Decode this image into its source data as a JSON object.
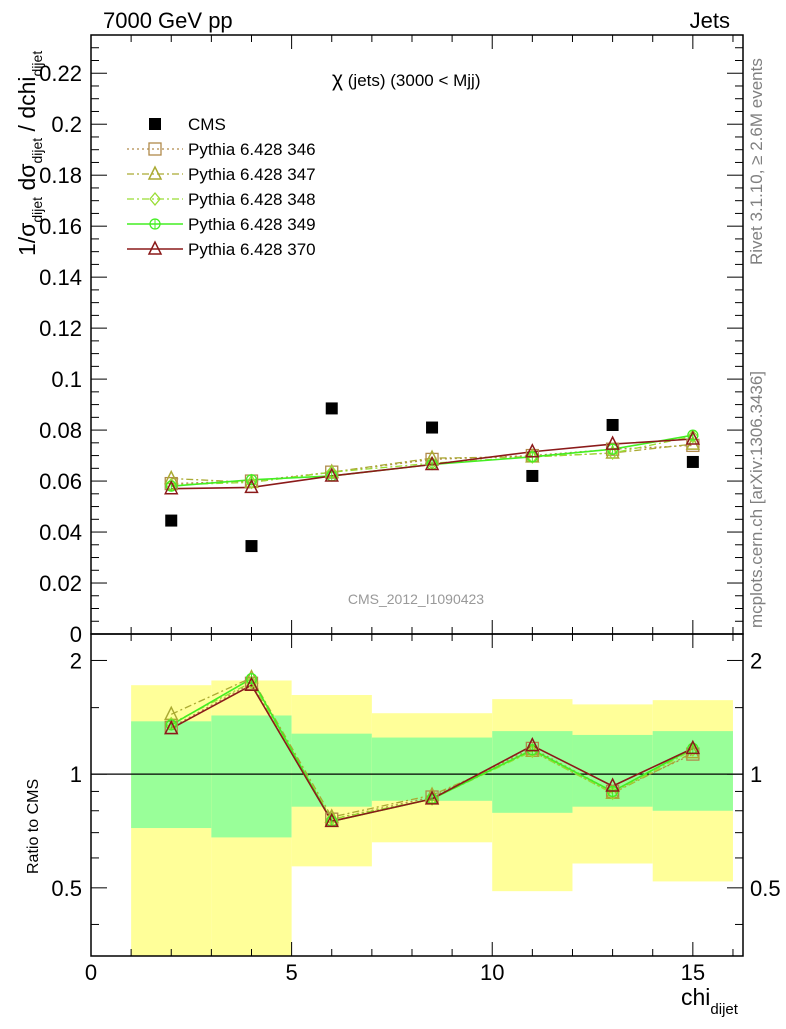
{
  "header": {
    "left": "7000 GeV pp",
    "right": "Jets"
  },
  "plot_title": {
    "chi": "χ",
    "rest": " (jets) (3000 < Mjj)"
  },
  "watermark": "CMS_2012_I1090423",
  "side_notes": {
    "rivet": "Rivet 3.1.10, ≥ 2.6M events",
    "mcplots": "mcplots.cern.ch [arXiv:1306.3436]"
  },
  "axis_labels": {
    "y_main_parts": [
      "1/σ",
      "dijet",
      " dσ",
      "dijet",
      " / dchi",
      "dijet"
    ],
    "y_ratio": "Ratio to CMS",
    "x_main": "chi",
    "x_sub": "dijet"
  },
  "colors": {
    "band_yellow": "#ffff99",
    "band_green": "#99ff99",
    "cms": "#000000",
    "p346": "#b08a4a",
    "p347": "#aaaa33",
    "p348": "#99dd33",
    "p349": "#44ee22",
    "p370": "#8b1a1a"
  },
  "chart_data": {
    "type": "scatter",
    "main": {
      "xlim": [
        0,
        16.25
      ],
      "ylim": [
        0,
        0.235
      ],
      "yticks": [
        {
          "v": 0,
          "label": "0"
        },
        {
          "v": 0.02,
          "label": "0.02"
        },
        {
          "v": 0.04,
          "label": "0.04"
        },
        {
          "v": 0.06,
          "label": "0.06"
        },
        {
          "v": 0.08,
          "label": "0.08"
        },
        {
          "v": 0.1,
          "label": "0.1"
        },
        {
          "v": 0.12,
          "label": "0.12"
        },
        {
          "v": 0.14,
          "label": "0.14"
        },
        {
          "v": 0.16,
          "label": "0.16"
        },
        {
          "v": 0.18,
          "label": "0.18"
        },
        {
          "v": 0.2,
          "label": "0.2"
        },
        {
          "v": 0.22,
          "label": "0.22"
        }
      ]
    },
    "ratio": {
      "xlim": [
        0,
        16.25
      ],
      "ylim": [
        0.33,
        2.35
      ],
      "log": true,
      "yticks": [
        {
          "v": 0.5,
          "label": "0.5"
        },
        {
          "v": 1,
          "label": "1"
        },
        {
          "v": 2,
          "label": "2"
        }
      ],
      "minor_yticks": [
        0.4,
        0.6,
        0.7,
        0.8,
        0.9,
        1.5,
        3
      ],
      "bands": [
        {
          "x0": 1,
          "x1": 3,
          "green": [
            0.72,
            1.38
          ],
          "yellow": [
            0,
            1.72
          ]
        },
        {
          "x0": 3,
          "x1": 5,
          "green": [
            0.68,
            1.43
          ],
          "yellow": [
            0,
            1.77
          ]
        },
        {
          "x0": 5,
          "x1": 7,
          "green": [
            0.82,
            1.28
          ],
          "yellow": [
            0.57,
            1.62
          ]
        },
        {
          "x0": 7,
          "x1": 10,
          "green": [
            0.85,
            1.25
          ],
          "yellow": [
            0.66,
            1.45
          ]
        },
        {
          "x0": 10,
          "x1": 12,
          "green": [
            0.79,
            1.3
          ],
          "yellow": [
            0.49,
            1.58
          ]
        },
        {
          "x0": 12,
          "x1": 14,
          "green": [
            0.82,
            1.27
          ],
          "yellow": [
            0.58,
            1.53
          ]
        },
        {
          "x0": 14,
          "x1": 16,
          "green": [
            0.8,
            1.3
          ],
          "yellow": [
            0.52,
            1.57
          ]
        }
      ]
    },
    "xticks": [
      {
        "v": 0,
        "label": "0"
      },
      {
        "v": 5,
        "label": "5"
      },
      {
        "v": 10,
        "label": "10"
      },
      {
        "v": 15,
        "label": "15"
      }
    ],
    "x": [
      2,
      4,
      6,
      8.5,
      11,
      13,
      15
    ],
    "series": [
      {
        "name": "CMS",
        "marker": "filled-square",
        "line": "none",
        "colorKey": "cms",
        "values": [
          0.0445,
          0.0345,
          0.0885,
          0.081,
          0.062,
          0.082,
          0.0675
        ],
        "ratio": [
          1,
          1,
          1,
          1,
          1,
          1,
          1
        ]
      },
      {
        "name": "Pythia 6.428 346",
        "marker": "open-square",
        "line": "dotted",
        "colorKey": "p346",
        "values": [
          0.059,
          0.06,
          0.0635,
          0.0685,
          0.07,
          0.0725,
          0.074
        ],
        "ratio": [
          1.33,
          1.74,
          0.76,
          0.87,
          1.17,
          0.9,
          1.13
        ]
      },
      {
        "name": "Pythia 6.428 347",
        "marker": "open-triangle",
        "line": "dashdot",
        "colorKey": "p347",
        "values": [
          0.061,
          0.0595,
          0.0635,
          0.069,
          0.0695,
          0.071,
          0.0745
        ],
        "ratio": [
          1.44,
          1.8,
          0.77,
          0.88,
          1.15,
          0.89,
          1.14
        ]
      },
      {
        "name": "Pythia 6.428 348",
        "marker": "open-diamond",
        "line": "dashdot",
        "colorKey": "p348",
        "values": [
          0.0585,
          0.0595,
          0.0635,
          0.067,
          0.0695,
          0.071,
          0.0775
        ],
        "ratio": [
          1.36,
          1.75,
          0.76,
          0.86,
          1.15,
          0.89,
          1.16
        ]
      },
      {
        "name": "Pythia 6.428 349",
        "marker": "open-circle",
        "line": "solid",
        "colorKey": "p349",
        "values": [
          0.058,
          0.0605,
          0.062,
          0.0665,
          0.0695,
          0.0725,
          0.078
        ],
        "ratio": [
          1.35,
          1.79,
          0.75,
          0.86,
          1.16,
          0.9,
          1.17
        ]
      },
      {
        "name": "Pythia 6.428 370",
        "marker": "open-triangle",
        "line": "solid",
        "colorKey": "p370",
        "values": [
          0.057,
          0.0575,
          0.062,
          0.0665,
          0.0715,
          0.0745,
          0.0765
        ],
        "ratio": [
          1.32,
          1.72,
          0.75,
          0.86,
          1.19,
          0.93,
          1.17
        ]
      }
    ]
  }
}
